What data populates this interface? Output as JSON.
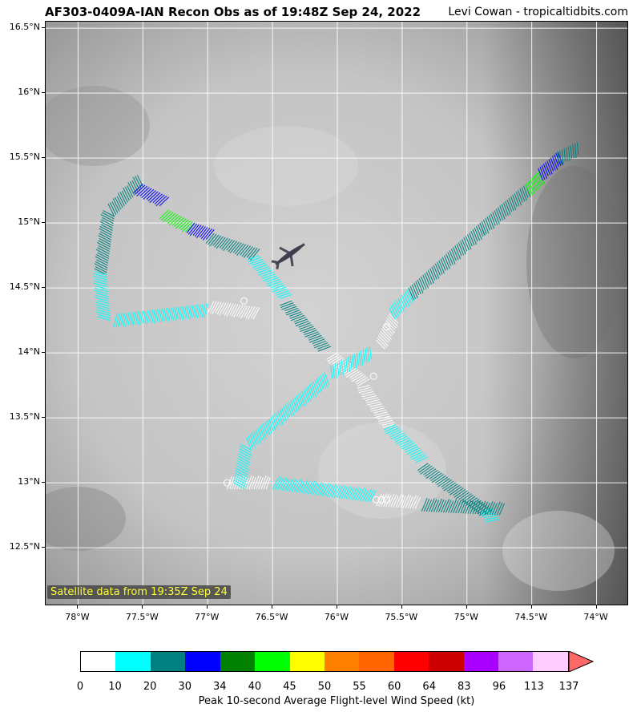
{
  "title": "AF303-0409A-IAN Recon Obs as of 19:48Z Sep 24, 2022",
  "credit": "Levi Cowan - tropicaltidbits.com",
  "satellite_note": "Satellite data from 19:35Z Sep 24",
  "map": {
    "lat_labels": [
      "16.5°N",
      "16°N",
      "15.5°N",
      "15°N",
      "14.5°N",
      "14°N",
      "13.5°N",
      "13°N",
      "12.5°N"
    ],
    "lon_labels": [
      "78°W",
      "77.5°W",
      "77°W",
      "76.5°W",
      "76°W",
      "75.5°W",
      "75°W",
      "74.5°W",
      "74°W"
    ],
    "extent": {
      "lon_min": -78.25,
      "lon_max": -73.75,
      "lat_min": 12.05,
      "lat_max": 16.55
    },
    "grid": true,
    "aircraft_icon": "airplane-icon",
    "flight_track": {
      "description_points": [
        {
          "lon": -77.5,
          "lat": 15.25
        },
        {
          "lon": -77.7,
          "lat": 15.0
        },
        {
          "lon": -77.75,
          "lat": 14.3
        },
        {
          "lon": -77.1,
          "lat": 14.35
        },
        {
          "lon": -76.7,
          "lat": 14.4
        },
        {
          "lon": -76.4,
          "lat": 14.45
        },
        {
          "lon": -76.0,
          "lat": 14.0
        },
        {
          "lon": -75.55,
          "lat": 13.55
        },
        {
          "lon": -75.25,
          "lat": 13.2
        },
        {
          "lon": -74.75,
          "lat": 12.8
        },
        {
          "lon": -75.6,
          "lat": 12.8
        },
        {
          "lon": -76.7,
          "lat": 12.95
        },
        {
          "lon": -76.75,
          "lat": 13.3
        },
        {
          "lon": -76.0,
          "lat": 13.9
        },
        {
          "lon": -75.45,
          "lat": 14.4
        },
        {
          "lon": -74.2,
          "lat": 15.6
        }
      ]
    }
  },
  "colorbar": {
    "title": "Peak 10-second Average Flight-level Wind Speed (kt)",
    "ticks": [
      "0",
      "10",
      "20",
      "30",
      "34",
      "40",
      "45",
      "50",
      "55",
      "60",
      "64",
      "83",
      "96",
      "113",
      "137"
    ],
    "colors": [
      "#ffffff",
      "#00ffff",
      "#008080",
      "#0000ff",
      "#008000",
      "#00ff00",
      "#ffff00",
      "#ff8000",
      "#ff6600",
      "#ff0000",
      "#cc0000",
      "#aa00ff",
      "#cc66ff",
      "#ffccff",
      "#ffaabb"
    ],
    "extend_color": "#ff6666"
  }
}
